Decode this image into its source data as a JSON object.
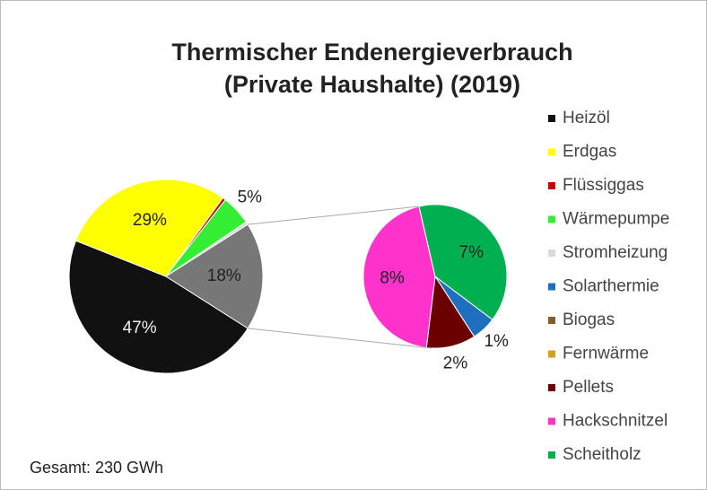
{
  "chart_data": {
    "type": "pie-of-pie",
    "title": [
      "Thermischer Endenergieverbrauch",
      "(Private Haushalte) (2019)"
    ],
    "categories": [
      "Heizöl",
      "Erdgas",
      "Flüssiggas",
      "Wärmepumpe",
      "Stromheizung",
      "Solarthermie",
      "Biogas",
      "Fernwärme",
      "Pellets",
      "Hackschnitzel",
      "Scheitholz"
    ],
    "values": [
      47,
      29,
      0.5,
      5,
      0.5,
      1,
      0,
      0,
      2,
      8,
      7
    ],
    "value_labels": [
      "47%",
      "29%",
      null,
      "5%",
      null,
      "1%",
      null,
      null,
      "2%",
      "8%",
      "7%"
    ],
    "colors": [
      "#111111",
      "#ffff00",
      "#c00000",
      "#33ee33",
      "#d9d9d9",
      "#1f6fbf",
      "#8b5a2b",
      "#d4a020",
      "#6b0000",
      "#ff33cc",
      "#00b050"
    ],
    "secondary": [
      false,
      false,
      false,
      false,
      false,
      true,
      true,
      true,
      true,
      true,
      true
    ],
    "other_value": 18,
    "other_label": "18%",
    "other_color": "#777777",
    "legend": "right",
    "note": "Gesamt: 230 GWh"
  }
}
